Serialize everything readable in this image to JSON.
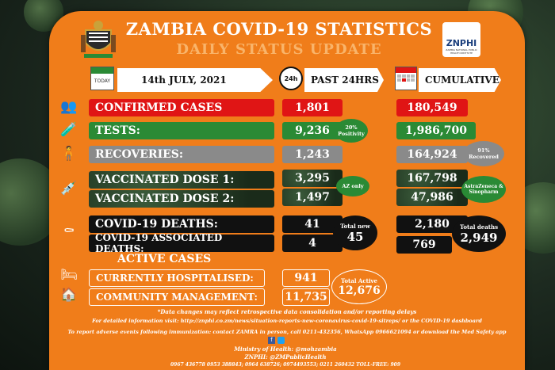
{
  "header": {
    "title": "ZAMBIA COVID-19 STATISTICS",
    "subtitle": "DAILY STATUS UPDATE",
    "logo_text": "ZNPHI",
    "logo_sub": "ZAMBIA NATIONAL PUBLIC HEALTH INSTITUTE"
  },
  "columns": {
    "today_icon_label": "TODAY",
    "date": "14th JULY, 2021",
    "past_icon_label": "24h",
    "past": "PAST 24HRS",
    "cumulative": "CUMULATIVE"
  },
  "rows": {
    "confirmed": {
      "label": "CONFIRMED CASES",
      "past": "1,801",
      "cum": "180,549"
    },
    "tests": {
      "label": "TESTS:",
      "past": "9,236",
      "cum": "1,986,700",
      "note": "20% Positivity"
    },
    "recoveries": {
      "label": "RECOVERIES:",
      "past": "1,243",
      "cum": "164,924",
      "note": "91% Recovered"
    },
    "dose1": {
      "label": "VACCINATED DOSE 1:",
      "past": "3,295",
      "cum": "167,798"
    },
    "dose2": {
      "label": "VACCINATED DOSE 2:",
      "past": "1,497",
      "cum": "47,986"
    },
    "vacc_note_past": "AZ only",
    "vacc_note_cum": "AstraZeneca & Sinopharm",
    "deaths": {
      "label": "COVID-19 DEATHS:",
      "past": "41",
      "cum": "2,180"
    },
    "assoc": {
      "label": "COVID-19 ASSOCIATED DEATHS:",
      "past": "4",
      "cum": "769"
    },
    "total_new_label": "Total new",
    "total_new": "45",
    "total_deaths_label": "Total deaths",
    "total_deaths": "2,949"
  },
  "active": {
    "heading": "ACTIVE CASES",
    "hospitalised": {
      "label": "CURRENTLY HOSPITALISED:",
      "value": "941"
    },
    "community": {
      "label": "COMMUNITY MANAGEMENT:",
      "value": "11,735"
    },
    "total_label": "Total Active",
    "total": "12,676"
  },
  "footer": {
    "note1": "*Data changes may reflect retrospective data consolidation and/or reporting delays",
    "note2": "For detailed information visit: http://znphi.co.zm/news/situation-reports-new-coronavirus-covid-19-sitreps/ or the COVID-19 dashboard",
    "note3": "To report adverse events following immunization: contact ZAMRA in person, call 0211-432356, WhatsApp 0966621094 or download the Med Safety app",
    "moh": "Ministry of Health: @mohzambia",
    "znphi": "ZNPHI: @ZMPublicHealth",
    "phones": "0967 436778   0953 388843; 0964 638726; 0974493553; 0211 260432 TOLL-FREE: 909"
  }
}
